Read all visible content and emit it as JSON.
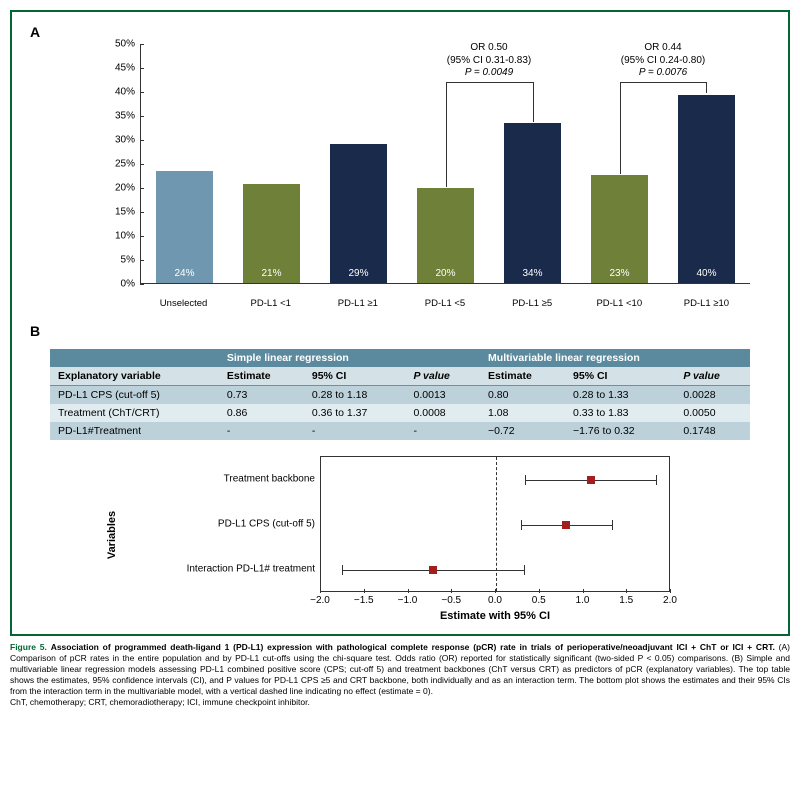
{
  "panelA": {
    "label": "A",
    "type": "bar",
    "ylim": [
      0,
      50
    ],
    "ytick_step": 5,
    "ytick_suffix": "%",
    "categories": [
      "Unselected",
      "PD-L1 <1",
      "PD-L1 ≥1",
      "PD-L1 <5",
      "PD-L1 ≥5",
      "PD-L1 <10",
      "PD-L1 ≥10"
    ],
    "values": [
      24,
      21,
      29,
      20,
      34,
      23,
      40
    ],
    "display_heights": [
      23.5,
      20.7,
      29.0,
      19.8,
      33.4,
      22.5,
      39.4
    ],
    "bar_labels": [
      "24%",
      "21%",
      "29%",
      "20%",
      "34%",
      "23%",
      "40%"
    ],
    "colors": [
      "#6f98b0",
      "#6f8038",
      "#1a2a4a",
      "#6f8038",
      "#1a2a4a",
      "#6f8038",
      "#1a2a4a"
    ],
    "brackets": [
      {
        "from": 3,
        "to": 4,
        "lines": [
          "OR 0.50",
          "(95% CI 0.31-0.83)",
          "P = 0.0049"
        ]
      },
      {
        "from": 5,
        "to": 6,
        "lines": [
          "OR 0.44",
          "(95% CI 0.24-0.80)",
          "P = 0.0076"
        ]
      }
    ]
  },
  "panelB": {
    "label": "B",
    "table": {
      "group_headers": [
        "",
        "Simple linear regression",
        "Multivariable linear regression"
      ],
      "columns": [
        "Explanatory variable",
        "Estimate",
        "95% CI",
        "P value",
        "Estimate",
        "95% CI",
        "P value"
      ],
      "rows": [
        [
          "PD-L1 CPS (cut-off 5)",
          "0.73",
          "0.28 to 1.18",
          "0.0013",
          "0.80",
          "0.28 to 1.33",
          "0.0028"
        ],
        [
          "Treatment (ChT/CRT)",
          "0.86",
          "0.36 to 1.37",
          "0.0008",
          "1.08",
          "0.33 to 1.83",
          "0.0050"
        ],
        [
          "PD-L1#Treatment",
          "-",
          "-",
          "-",
          "−0.72",
          "−1.76 to 0.32",
          "0.1748"
        ]
      ],
      "header_bg": "#5b8a9e",
      "subheader_bg": "#d4e2e8",
      "row_bg_a": "#bcd1da",
      "row_bg_b": "#e1ecf0"
    },
    "forest": {
      "ylabel": "Variables",
      "xlabel": "Estimate with 95% CI",
      "xlim": [
        -2.0,
        2.0
      ],
      "xticks": [
        -2.0,
        -1.5,
        -1.0,
        -0.5,
        0.0,
        0.5,
        1.0,
        1.5,
        2.0
      ],
      "xtick_labels": [
        "−2.0",
        "−1.5",
        "−1.0",
        "−0.5",
        "0.0",
        "0.5",
        "1.0",
        "1.5",
        "2.0"
      ],
      "marker_color": "#a02020",
      "items": [
        {
          "label": "Treatment backbone",
          "estimate": 1.08,
          "lo": 0.33,
          "hi": 1.83
        },
        {
          "label": "PD-L1 CPS (cut-off 5)",
          "estimate": 0.8,
          "lo": 0.28,
          "hi": 1.33
        },
        {
          "label": "Interaction PD-L1# treatment",
          "estimate": -0.72,
          "lo": -1.76,
          "hi": 0.32
        }
      ]
    }
  },
  "caption": {
    "fig_label": "Figure 5.",
    "title": "Association of programmed death-ligand 1 (PD-L1) expression with pathological complete response (pCR) rate in trials of perioperative/neoadjuvant ICI + ChT or ICI + CRT.",
    "body": " (A) Comparison of pCR rates in the entire population and by PD-L1 cut-offs using the chi-square test. Odds ratio (OR) reported for statistically significant (two-sided P < 0.05) comparisons. (B) Simple and multivariable linear regression models assessing PD-L1 combined positive score (CPS; cut-off 5) and treatment backbones (ChT versus CRT) as predictors of pCR (explanatory variables). The top table shows the estimates, 95% confidence intervals (CI), and P values for PD-L1 CPS ≥5 and CRT backbone, both individually and as an interaction term. The bottom plot shows the estimates and their 95% CIs from the interaction term in the multivariable model, with a vertical dashed line indicating no effect (estimate = 0).",
    "abbrev": "ChT, chemotherapy; CRT, chemoradiotherapy; ICI, immune checkpoint inhibitor."
  }
}
